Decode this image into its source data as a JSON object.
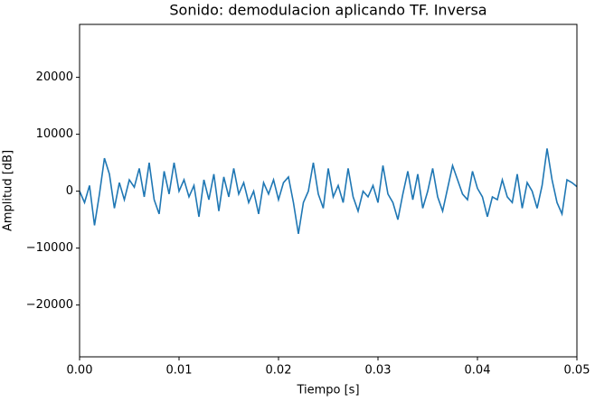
{
  "chart_data": {
    "type": "line",
    "title": "Sonido: demodulacion aplicando TF. Inversa",
    "title_color": "#0000ff",
    "x_label": "Tiempo [s]",
    "x_label_color": "#ff0000",
    "y_label": "Amplitud [dB]",
    "y_label_color": "#e6a817",
    "xlim": [
      0,
      0.05
    ],
    "ylim": [
      -29100,
      29300
    ],
    "xticks": [
      {
        "value": 0,
        "label": "0.00"
      },
      {
        "value": 0.01,
        "label": "0.01"
      },
      {
        "value": 0.02,
        "label": "0.02"
      },
      {
        "value": 0.03,
        "label": "0.03"
      },
      {
        "value": 0.04,
        "label": "0.04"
      },
      {
        "value": 0.05,
        "label": "0.05"
      }
    ],
    "yticks": [
      {
        "value": -20000,
        "label": "−20000"
      },
      {
        "value": -10000,
        "label": "−10000"
      },
      0,
      10000,
      20000
    ],
    "x": [
      0,
      0.0005,
      0.001,
      0.0015,
      0.002,
      0.0025,
      0.003,
      0.0035,
      0.004,
      0.0045,
      0.005,
      0.0055,
      0.006,
      0.0065,
      0.007,
      0.0075,
      0.008,
      0.0085,
      0.009,
      0.0095,
      0.01,
      0.0105,
      0.011,
      0.0115,
      0.012,
      0.0125,
      0.013,
      0.0135,
      0.014,
      0.0145,
      0.015,
      0.0155,
      0.016,
      0.0165,
      0.017,
      0.0175,
      0.018,
      0.0185,
      0.019,
      0.0195,
      0.02,
      0.0205,
      0.021,
      0.0215,
      0.022,
      0.0225,
      0.023,
      0.0235,
      0.024,
      0.0245,
      0.025,
      0.0255,
      0.026,
      0.0265,
      0.027,
      0.0275,
      0.028,
      0.0285,
      0.029,
      0.0295,
      0.03,
      0.0305,
      0.031,
      0.0315,
      0.032,
      0.0325,
      0.033,
      0.0335,
      0.034,
      0.0345,
      0.035,
      0.0355,
      0.036,
      0.0365,
      0.037,
      0.0375,
      0.038,
      0.0385,
      0.039,
      0.0395,
      0.04,
      0.0405,
      0.041,
      0.0415,
      0.042,
      0.0425,
      0.043,
      0.0435,
      0.044,
      0.0445,
      0.045,
      0.0455,
      0.046,
      0.0465,
      0.047,
      0.0475,
      0.048,
      0.0485,
      0.049,
      0.0495,
      0.05
    ],
    "series": [
      {
        "color": "#1f77b4",
        "values": [
          0,
          -2000,
          1000,
          -6000,
          -500,
          5800,
          3000,
          -3000,
          1500,
          -1500,
          2000,
          700,
          4000,
          -1000,
          5000,
          -1500,
          -4000,
          3500,
          -500,
          5000,
          0,
          2000,
          -1000,
          1000,
          -4500,
          2000,
          -1500,
          3000,
          -3500,
          2500,
          -1000,
          4000,
          -500,
          1500,
          -2000,
          0,
          -4000,
          1500,
          -500,
          2000,
          -1500,
          1500,
          2500,
          -2000,
          -7500,
          -2000,
          0,
          5000,
          -500,
          -3000,
          4000,
          -1000,
          1000,
          -2000,
          4000,
          -1000,
          -3500,
          0,
          -1000,
          1000,
          -2000,
          4500,
          -500,
          -2000,
          -5000,
          -500,
          3500,
          -1500,
          3000,
          -3000,
          0,
          4000,
          -1000,
          -3500,
          500,
          4500,
          2000,
          -500,
          -1500,
          3500,
          500,
          -1000,
          -4500,
          -1000,
          -1500,
          2000,
          -1000,
          -2000,
          3000,
          -3000,
          1500,
          0,
          -3000,
          1000,
          7500,
          2000,
          -2000,
          -4000,
          2000,
          1500,
          800
        ]
      }
    ]
  }
}
